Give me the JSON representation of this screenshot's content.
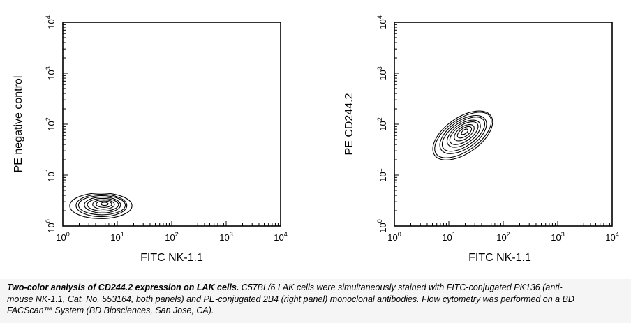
{
  "chart_data": [
    {
      "type": "contour",
      "xlabel": "FITC NK-1.1",
      "ylabel": "PE negative control",
      "xscale": "log",
      "yscale": "log",
      "xlim": [
        1,
        10000
      ],
      "ylim": [
        1,
        10000
      ],
      "x_ticks": [
        {
          "base": "10",
          "exp": "0"
        },
        {
          "base": "10",
          "exp": "1"
        },
        {
          "base": "10",
          "exp": "2"
        },
        {
          "base": "10",
          "exp": "3"
        },
        {
          "base": "10",
          "exp": "4"
        }
      ],
      "y_ticks": [
        {
          "base": "10",
          "exp": "0"
        },
        {
          "base": "10",
          "exp": "1"
        },
        {
          "base": "10",
          "exp": "2"
        },
        {
          "base": "10",
          "exp": "3"
        },
        {
          "base": "10",
          "exp": "4"
        }
      ],
      "populations": [
        {
          "center_x": 5,
          "center_y": 2.5,
          "spread_x_decades": 1.1,
          "spread_y_decades": 0.5,
          "tilt_deg": 0,
          "levels": 8
        }
      ]
    },
    {
      "type": "contour",
      "xlabel": "FITC NK-1.1",
      "ylabel": "PE CD244.2",
      "xscale": "log",
      "yscale": "log",
      "xlim": [
        1,
        10000
      ],
      "ylim": [
        1,
        10000
      ],
      "x_ticks": [
        {
          "base": "10",
          "exp": "0"
        },
        {
          "base": "10",
          "exp": "1"
        },
        {
          "base": "10",
          "exp": "2"
        },
        {
          "base": "10",
          "exp": "3"
        },
        {
          "base": "10",
          "exp": "4"
        }
      ],
      "y_ticks": [
        {
          "base": "10",
          "exp": "0"
        },
        {
          "base": "10",
          "exp": "1"
        },
        {
          "base": "10",
          "exp": "2"
        },
        {
          "base": "10",
          "exp": "3"
        },
        {
          "base": "10",
          "exp": "4"
        }
      ],
      "populations": [
        {
          "center_x": 18,
          "center_y": 60,
          "spread_x_decades": 1.3,
          "spread_y_decades": 0.7,
          "tilt_deg": 35,
          "levels": 9
        }
      ]
    }
  ],
  "caption": {
    "bold": "Two-color analysis of CD244.2 expression on LAK cells.",
    "text": " C57BL/6 LAK cells were  simultaneously stained with FITC-conjugated PK136 (anti-mouse NK-1.1, Cat. No. 553164, both panels) and PE-conjugated 2B4 (right panel) monoclonal antibodies. Flow cytometry was performed on a BD FACScan™ System (BD Biosciences, San Jose, CA)."
  }
}
